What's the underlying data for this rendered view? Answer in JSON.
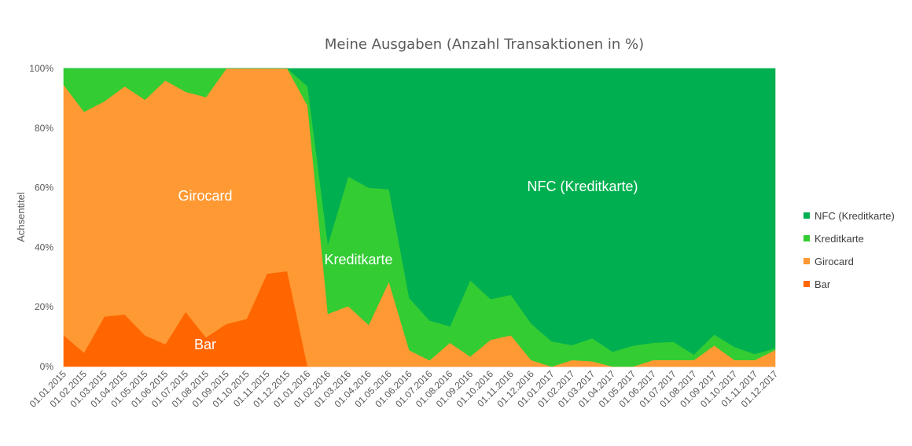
{
  "chart_data": {
    "type": "area",
    "stacked": true,
    "percent": true,
    "title": "Meine Ausgaben (Anzahl Transaktionen in %)",
    "ylabel": "Achsentitel",
    "ylim": [
      0,
      100
    ],
    "y_ticks": [
      "0%",
      "20%",
      "40%",
      "60%",
      "80%",
      "100%"
    ],
    "legend_position": "right",
    "categories": [
      "01.01.2015",
      "01.02.2015",
      "01.03.2015",
      "01.04.2015",
      "01.05.2015",
      "01.06.2015",
      "01.07.2015",
      "01.08.2015",
      "01.09.2015",
      "01.10.2015",
      "01.11.2015",
      "01.12.2015",
      "01.01.2016",
      "01.02.2016",
      "01.03.2016",
      "01.04.2016",
      "01.05.2016",
      "01.06.2016",
      "01.07.2016",
      "01.08.2016",
      "01.09.2016",
      "01.10.2016",
      "01.11.2016",
      "01.12.2016",
      "01.01.2017",
      "01.02.2017",
      "01.03.2017",
      "01.04.2017",
      "01.05.2017",
      "01.06.2017",
      "01.07.2017",
      "01.08.2017",
      "01.09.2017",
      "01.10.2017",
      "01.11.2017",
      "01.12.2017"
    ],
    "series": [
      {
        "name": "Bar",
        "color": "#ff6600",
        "values": [
          10.5,
          4.7,
          16.8,
          17.5,
          10.5,
          7.5,
          18.4,
          9.8,
          14.3,
          16,
          31.2,
          32,
          0,
          0,
          0,
          0,
          0,
          0,
          0,
          0,
          0,
          0,
          0,
          0,
          0,
          0,
          0,
          0,
          0,
          0,
          0,
          0,
          0,
          0,
          0,
          0
        ],
        "label": "Bar"
      },
      {
        "name": "Girocard",
        "color": "#ff9933",
        "values": [
          84,
          80.8,
          72.2,
          76.5,
          79,
          88.5,
          73.8,
          80.6,
          85.7,
          84,
          68.8,
          68,
          87.5,
          17.7,
          20.3,
          14,
          28.5,
          5.5,
          2.1,
          8,
          3.4,
          9,
          10.5,
          2.2,
          0,
          2.2,
          1.8,
          0,
          0,
          2.2,
          2.2,
          2.2,
          7.1,
          2.2,
          2.2,
          5.6
        ],
        "label": "Girocard"
      },
      {
        "name": "Kreditkarte",
        "color": "#33cc33",
        "values": [
          5.5,
          14.5,
          11,
          6,
          10.5,
          4,
          7.8,
          9.6,
          0,
          0,
          0,
          0,
          6.5,
          23.3,
          43.5,
          46,
          31,
          17.5,
          13.4,
          5.5,
          25.6,
          13.6,
          13.6,
          12.2,
          8.5,
          5,
          7.7,
          5,
          7,
          5.8,
          6.1,
          1.8,
          3.7,
          4.4,
          2,
          0.6
        ],
        "label": "Kreditkarte"
      },
      {
        "name": "NFC (Kreditkarte)",
        "color": "#00b050",
        "values": [
          0,
          0,
          0,
          0,
          0,
          0,
          0,
          0,
          0,
          0,
          0,
          0,
          6,
          59,
          36.2,
          40,
          40.5,
          77,
          84.5,
          86.5,
          71,
          77.4,
          75.9,
          85.6,
          91.5,
          92.8,
          90.5,
          95,
          93,
          92,
          91.7,
          96,
          89.2,
          93.4,
          95.8,
          93.8
        ],
        "label": "NFC (Kreditkarte)"
      }
    ],
    "legend_order": [
      "NFC (Kreditkarte)",
      "Kreditkarte",
      "Girocard",
      "Bar"
    ]
  }
}
